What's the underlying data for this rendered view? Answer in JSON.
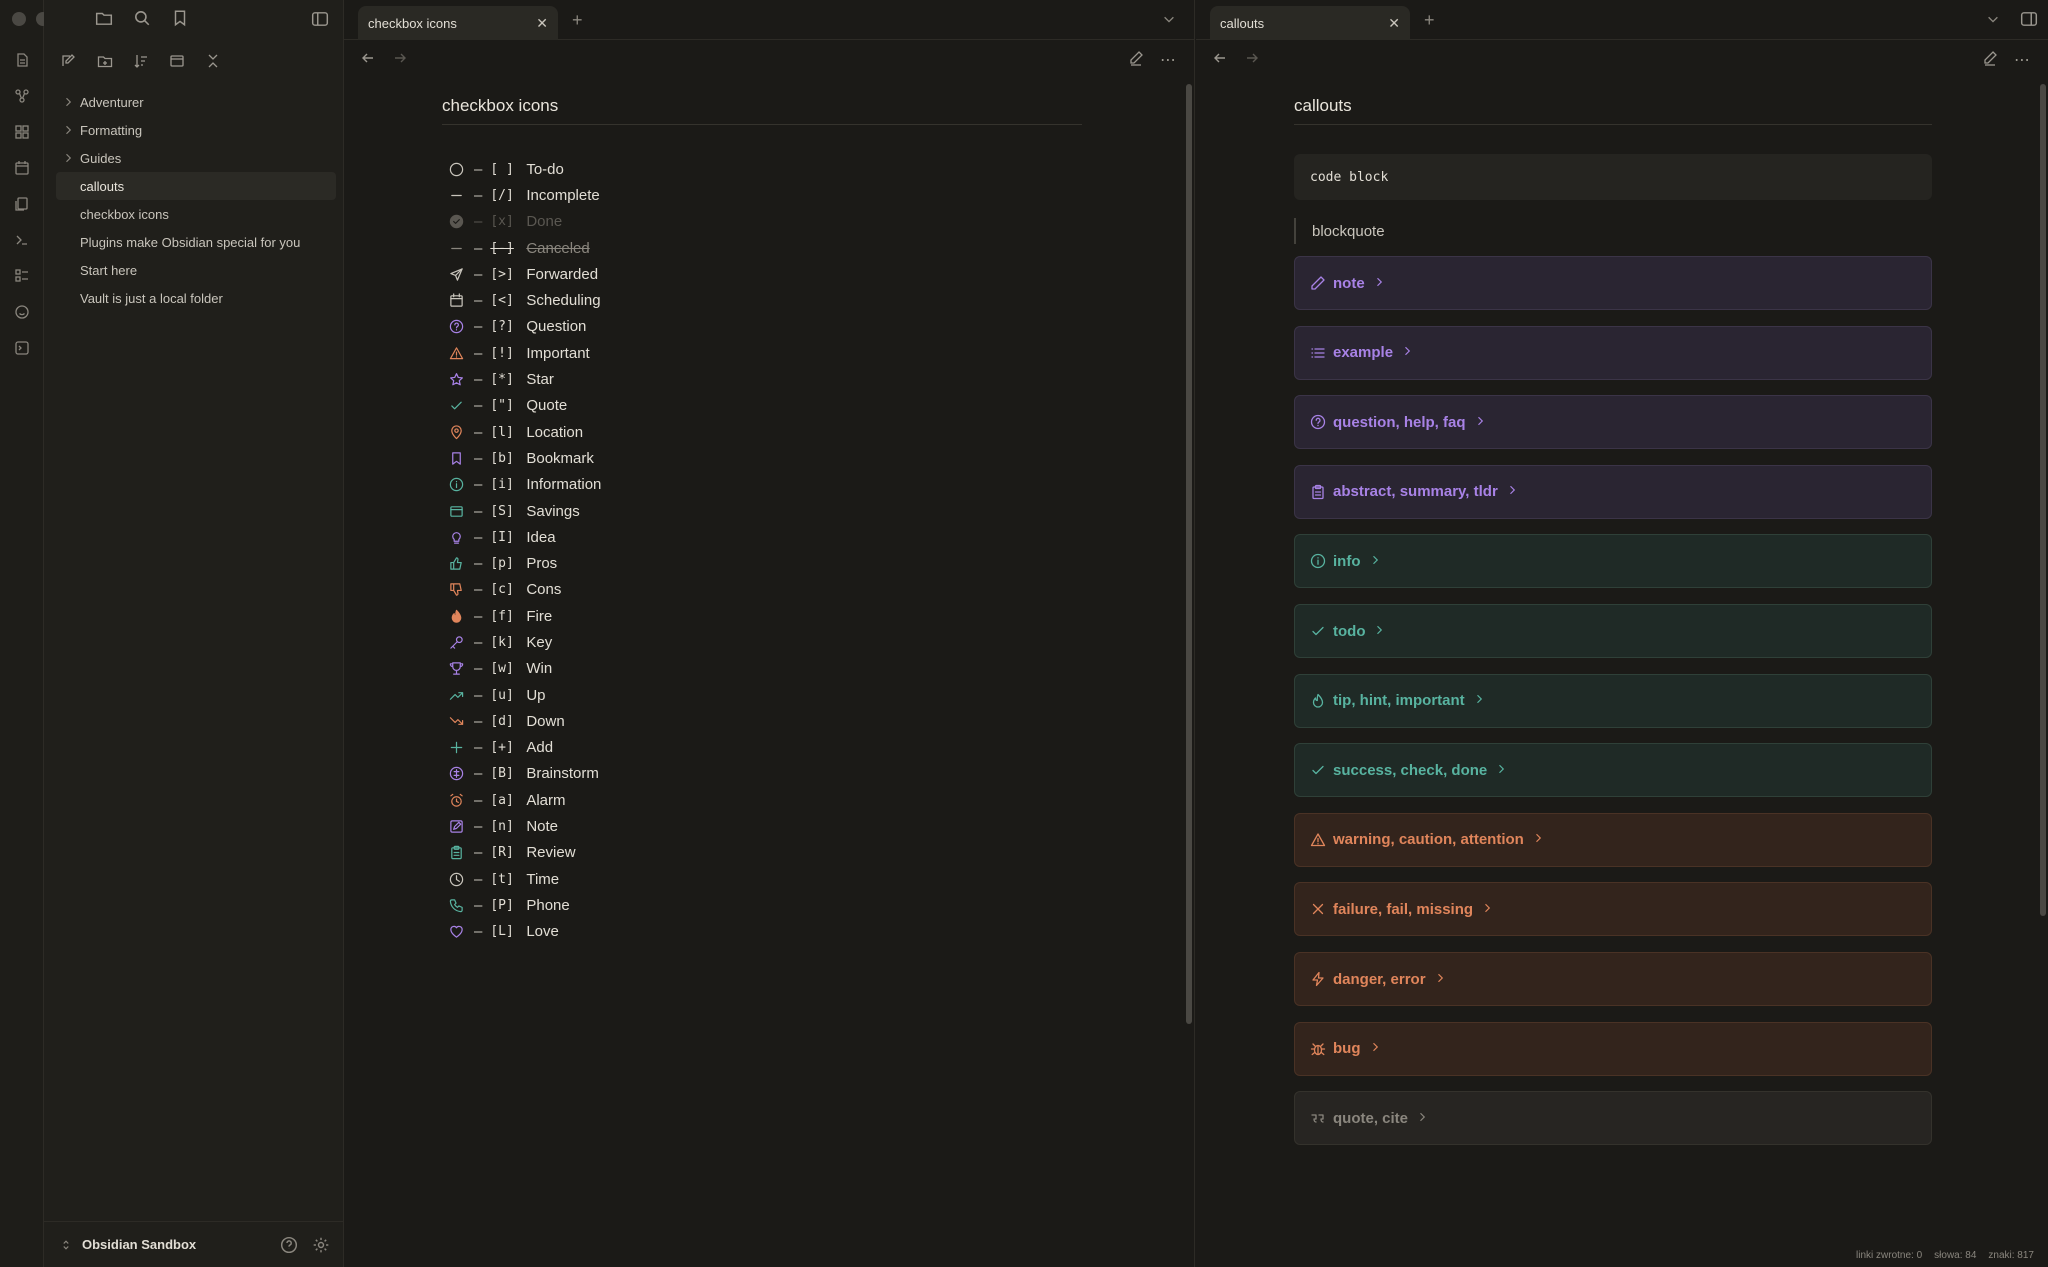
{
  "sidebar": {
    "tree": [
      {
        "label": "Adventurer",
        "folder": true
      },
      {
        "label": "Formatting",
        "folder": true
      },
      {
        "label": "Guides",
        "folder": true
      },
      {
        "label": "callouts",
        "folder": false,
        "active": true
      },
      {
        "label": "checkbox icons",
        "folder": false
      },
      {
        "label": "Plugins make Obsidian special for you",
        "folder": false
      },
      {
        "label": "Start here",
        "folder": false
      },
      {
        "label": "Vault is just a local folder",
        "folder": false
      }
    ],
    "vault_name": "Obsidian Sandbox"
  },
  "left_pane": {
    "tab_label": "checkbox icons",
    "title": "checkbox icons",
    "items": [
      {
        "code": "[ ]",
        "label": "To-do",
        "icon": "circle-icon",
        "color": "#c9c5bc"
      },
      {
        "code": "[/]",
        "label": "Incomplete",
        "icon": "minus-icon",
        "color": "#c9c5bc"
      },
      {
        "code": "[x]",
        "label": "Done",
        "icon": "check-circle-icon",
        "color": "#5a5751",
        "state": "done"
      },
      {
        "code": "[-]",
        "label": "Canceled",
        "icon": "minus-icon",
        "color": "#8a867e",
        "state": "canceled"
      },
      {
        "code": "[>]",
        "label": "Forwarded",
        "icon": "send-icon",
        "color": "#c9c5bc"
      },
      {
        "code": "[<]",
        "label": "Scheduling",
        "icon": "calendar-icon",
        "color": "#c9c5bc"
      },
      {
        "code": "[?]",
        "label": "Question",
        "icon": "question-icon",
        "color": "#a882e6"
      },
      {
        "code": "[!]",
        "label": "Important",
        "icon": "warning-icon",
        "color": "#e0855b"
      },
      {
        "code": "[*]",
        "label": "Star",
        "icon": "star-icon",
        "color": "#a882e6"
      },
      {
        "code": "[\"]",
        "label": "Quote",
        "icon": "check-icon",
        "color": "#58b3a0"
      },
      {
        "code": "[l]",
        "label": "Location",
        "icon": "pin-icon",
        "color": "#e0855b"
      },
      {
        "code": "[b]",
        "label": "Bookmark",
        "icon": "bookmark-icon",
        "color": "#a882e6"
      },
      {
        "code": "[i]",
        "label": "Information",
        "icon": "info-icon",
        "color": "#58b3a0"
      },
      {
        "code": "[S]",
        "label": "Savings",
        "icon": "savings-icon",
        "color": "#58b3a0"
      },
      {
        "code": "[I]",
        "label": "Idea",
        "icon": "lightbulb-icon",
        "color": "#a882e6"
      },
      {
        "code": "[p]",
        "label": "Pros",
        "icon": "thumbs-up-icon",
        "color": "#58b3a0"
      },
      {
        "code": "[c]",
        "label": "Cons",
        "icon": "thumbs-down-icon",
        "color": "#e0855b"
      },
      {
        "code": "[f]",
        "label": "Fire",
        "icon": "fire-icon",
        "color": "#e0855b"
      },
      {
        "code": "[k]",
        "label": "Key",
        "icon": "key-icon",
        "color": "#a882e6"
      },
      {
        "code": "[w]",
        "label": "Win",
        "icon": "trophy-icon",
        "color": "#a882e6"
      },
      {
        "code": "[u]",
        "label": "Up",
        "icon": "trend-up-icon",
        "color": "#58b3a0"
      },
      {
        "code": "[d]",
        "label": "Down",
        "icon": "trend-down-icon",
        "color": "#e0855b"
      },
      {
        "code": "[+]",
        "label": "Add",
        "icon": "plus-icon",
        "color": "#58b3a0"
      },
      {
        "code": "[B]",
        "label": "Brainstorm",
        "icon": "brainstorm-icon",
        "color": "#a882e6"
      },
      {
        "code": "[a]",
        "label": "Alarm",
        "icon": "alarm-icon",
        "color": "#e0855b"
      },
      {
        "code": "[n]",
        "label": "Note",
        "icon": "note-icon",
        "color": "#a882e6"
      },
      {
        "code": "[R]",
        "label": "Review",
        "icon": "clipboard-icon",
        "color": "#58b3a0"
      },
      {
        "code": "[t]",
        "label": "Time",
        "icon": "clock-icon",
        "color": "#c9c5bc"
      },
      {
        "code": "[P]",
        "label": "Phone",
        "icon": "phone-icon",
        "color": "#58b3a0"
      },
      {
        "code": "[L]",
        "label": "Love",
        "icon": "heart-icon",
        "color": "#a882e6"
      }
    ]
  },
  "right_pane": {
    "tab_label": "callouts",
    "title": "callouts",
    "code_block": "code block",
    "blockquote": "blockquote",
    "callouts": [
      {
        "label": "note",
        "icon": "pencil-icon",
        "tone": "purple"
      },
      {
        "label": "example",
        "icon": "list-icon",
        "tone": "purple"
      },
      {
        "label": "question, help, faq",
        "icon": "question-icon",
        "tone": "purple"
      },
      {
        "label": "abstract, summary, tldr",
        "icon": "clipboard-icon",
        "tone": "purple"
      },
      {
        "label": "info",
        "icon": "info-icon",
        "tone": "green"
      },
      {
        "label": "todo",
        "icon": "check-icon",
        "tone": "green"
      },
      {
        "label": "tip, hint, important",
        "icon": "flame-icon",
        "tone": "green"
      },
      {
        "label": "success, check, done",
        "icon": "check-icon",
        "tone": "green"
      },
      {
        "label": "warning, caution, attention",
        "icon": "warning-icon",
        "tone": "orange"
      },
      {
        "label": "failure, fail, missing",
        "icon": "x-icon",
        "tone": "orange"
      },
      {
        "label": "danger, error",
        "icon": "zap-icon",
        "tone": "orange"
      },
      {
        "label": "bug",
        "icon": "bug-icon",
        "tone": "orange"
      },
      {
        "label": "quote, cite",
        "icon": "quote-icon",
        "tone": "gray"
      }
    ]
  },
  "status": {
    "backlinks": "linki zwrotne: 0",
    "words": "słowa: 84",
    "chars": "znaki: 817"
  }
}
